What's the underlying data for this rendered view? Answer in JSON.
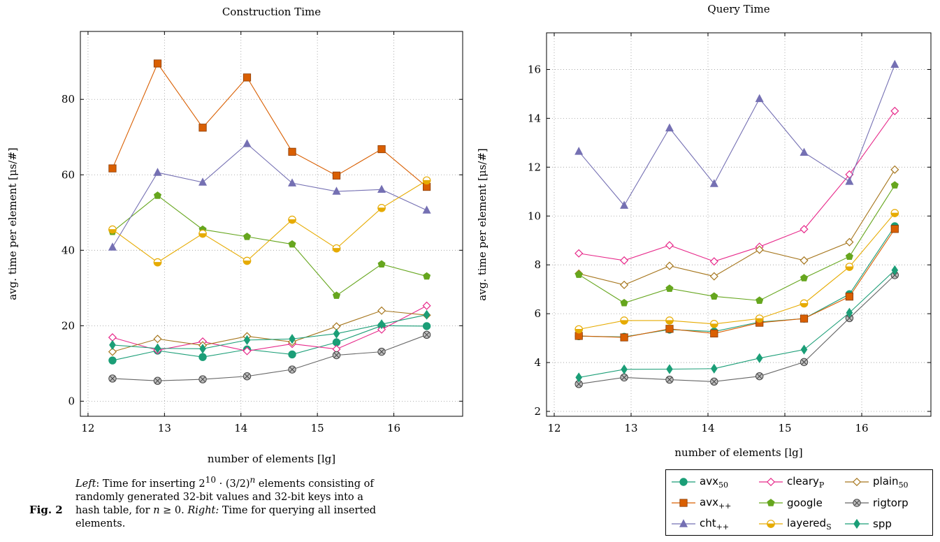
{
  "figure": {
    "label": "Fig. 2",
    "caption_left_word": "Left",
    "caption_part1": ": Time for inserting 2",
    "caption_sup1": "10",
    "caption_part2": " · (3/2)",
    "caption_sup2": "n",
    "caption_part3": " elements consisting of randomly generated 32-bit values and 32-bit keys into a hash table, for ",
    "caption_n": "n",
    "caption_part4": " ≥ 0. ",
    "caption_right_word": "Right:",
    "caption_part5": " Time for querying all inserted elements."
  },
  "legend": {
    "entries": [
      {
        "key": "avx50",
        "base": "avx",
        "sub": "50"
      },
      {
        "key": "clearyP",
        "base": "cleary",
        "sub": "P"
      },
      {
        "key": "plain50",
        "base": "plain",
        "sub": "50"
      },
      {
        "key": "avxpp",
        "base": "avx",
        "sub": "++"
      },
      {
        "key": "google",
        "base": "google",
        "sub": ""
      },
      {
        "key": "rigtorp",
        "base": "rigtorp",
        "sub": ""
      },
      {
        "key": "chtpp",
        "base": "cht",
        "sub": "++"
      },
      {
        "key": "layeredS",
        "base": "layered",
        "sub": "S"
      },
      {
        "key": "spp",
        "base": "spp",
        "sub": ""
      }
    ]
  },
  "styles": {
    "avx50": {
      "color": "#1b9e77",
      "marker": "circle"
    },
    "clearyP": {
      "color": "#e7298a",
      "marker": "diamond-open"
    },
    "plain50": {
      "color": "#a6761d",
      "marker": "diamond-open"
    },
    "avxpp": {
      "color": "#d95f02",
      "marker": "square"
    },
    "google": {
      "color": "#66a61e",
      "marker": "pentagon"
    },
    "rigtorp": {
      "color": "#666666",
      "marker": "otimes"
    },
    "chtpp": {
      "color": "#7570b3",
      "marker": "triangle"
    },
    "layeredS": {
      "color": "#e6ab02",
      "marker": "halfcircle"
    },
    "spp": {
      "color": "#1b9e77",
      "marker": "diamond"
    }
  },
  "chart_data": [
    {
      "type": "line",
      "title": "Construction Time",
      "xlabel": "number of elements [lg]",
      "ylabel": "avg. time per element [μs/#]",
      "xlim": [
        11.9,
        16.9
      ],
      "ylim": [
        -4,
        98
      ],
      "xticks": [
        12,
        13,
        14,
        15,
        16
      ],
      "yticks": [
        0,
        20,
        40,
        60,
        80
      ],
      "grid": true,
      "x": [
        12.32,
        12.91,
        13.5,
        14.08,
        14.67,
        15.25,
        15.84,
        16.43
      ],
      "series": [
        {
          "name": "avx50",
          "values": [
            10.8,
            13.4,
            11.7,
            13.7,
            12.4,
            15.6,
            20.0,
            19.9
          ]
        },
        {
          "name": "clearyP",
          "values": [
            16.9,
            13.5,
            15.8,
            13.3,
            15.2,
            13.8,
            19.0,
            25.3
          ]
        },
        {
          "name": "plain50",
          "values": [
            13.1,
            16.5,
            14.8,
            17.2,
            15.7,
            19.8,
            24.0,
            22.8
          ]
        },
        {
          "name": "avxpp",
          "values": [
            61.7,
            89.5,
            72.5,
            85.8,
            66.1,
            59.8,
            66.8,
            56.8
          ]
        },
        {
          "name": "google",
          "values": [
            44.9,
            54.5,
            45.5,
            43.6,
            41.6,
            28.0,
            36.3,
            33.1
          ]
        },
        {
          "name": "rigtorp",
          "values": [
            6.0,
            5.4,
            5.8,
            6.6,
            8.4,
            12.2,
            13.1,
            17.6
          ]
        },
        {
          "name": "chtpp",
          "values": [
            40.8,
            60.6,
            58.0,
            68.2,
            57.8,
            55.6,
            56.1,
            50.6
          ]
        },
        {
          "name": "layeredS",
          "values": [
            45.5,
            36.8,
            44.4,
            37.2,
            48.1,
            40.5,
            51.2,
            58.5
          ]
        },
        {
          "name": "spp",
          "values": [
            14.9,
            14.0,
            13.9,
            16.2,
            16.5,
            17.9,
            20.4,
            22.9
          ]
        }
      ]
    },
    {
      "type": "line",
      "title": "Query Time",
      "xlabel": "number of elements [lg]",
      "ylabel": "avg. time per element [μs/#]",
      "xlim": [
        11.9,
        16.9
      ],
      "ylim": [
        1.8,
        17.5
      ],
      "xticks": [
        12,
        13,
        14,
        15,
        16
      ],
      "yticks": [
        2,
        4,
        6,
        8,
        10,
        12,
        14,
        16
      ],
      "grid": true,
      "x": [
        12.32,
        12.91,
        13.5,
        14.08,
        14.67,
        15.25,
        15.84,
        16.43
      ],
      "series": [
        {
          "name": "avx50",
          "values": [
            5.08,
            5.05,
            5.35,
            5.27,
            5.66,
            5.8,
            6.8,
            9.58
          ]
        },
        {
          "name": "clearyP",
          "values": [
            8.47,
            8.18,
            8.8,
            8.14,
            8.74,
            9.46,
            11.7,
            14.3
          ]
        },
        {
          "name": "plain50",
          "values": [
            7.64,
            7.18,
            7.96,
            7.53,
            8.62,
            8.18,
            8.93,
            11.9
          ]
        },
        {
          "name": "avxpp",
          "values": [
            5.09,
            5.03,
            5.38,
            5.19,
            5.63,
            5.8,
            6.7,
            9.47
          ]
        },
        {
          "name": "google",
          "values": [
            7.6,
            6.44,
            7.03,
            6.71,
            6.54,
            7.46,
            8.34,
            11.26
          ]
        },
        {
          "name": "rigtorp",
          "values": [
            3.12,
            3.39,
            3.3,
            3.22,
            3.44,
            4.02,
            5.82,
            7.58
          ]
        },
        {
          "name": "chtpp",
          "values": [
            12.64,
            10.43,
            13.6,
            11.32,
            14.8,
            12.6,
            11.41,
            16.2
          ]
        },
        {
          "name": "layeredS",
          "values": [
            5.36,
            5.72,
            5.72,
            5.58,
            5.8,
            6.42,
            7.92,
            10.12
          ]
        },
        {
          "name": "spp",
          "values": [
            3.39,
            3.72,
            3.73,
            3.75,
            4.18,
            4.53,
            6.04,
            7.78
          ]
        }
      ]
    }
  ]
}
